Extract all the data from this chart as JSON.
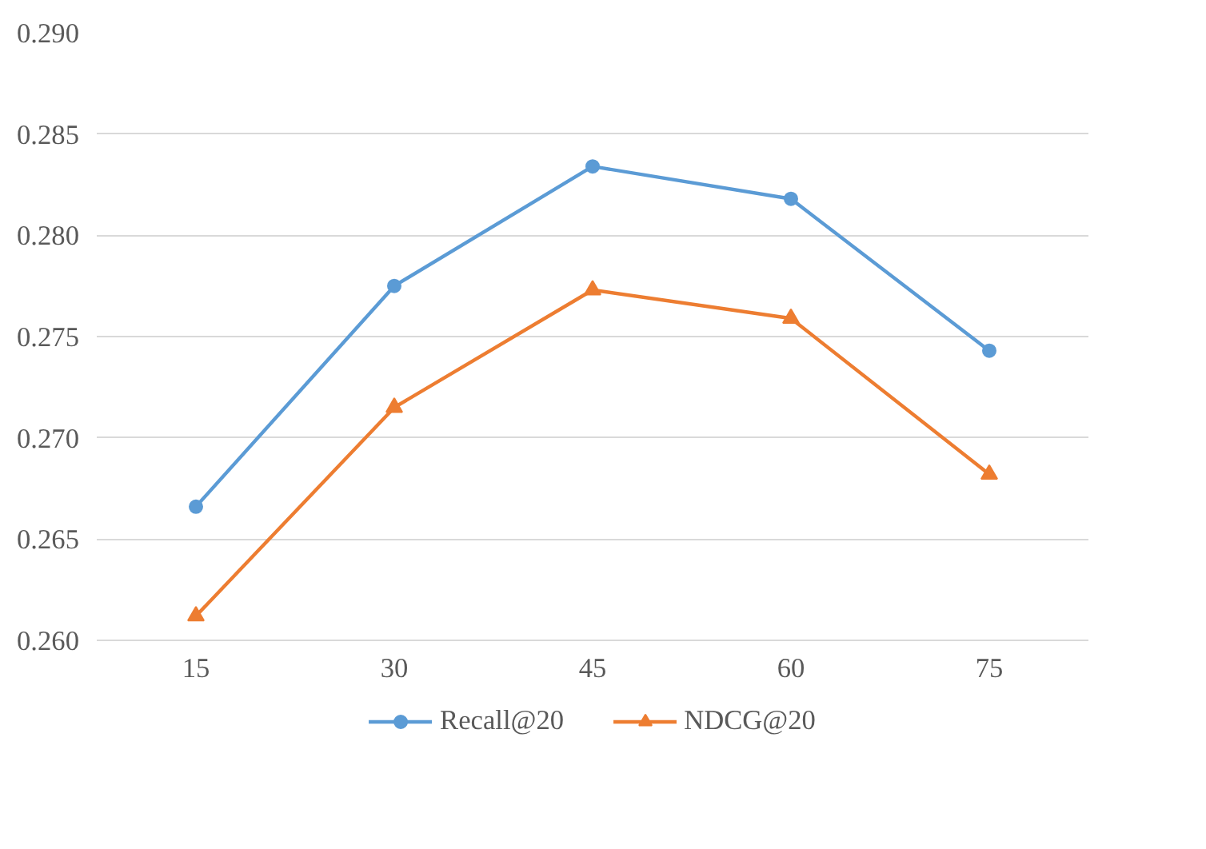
{
  "chart_data": {
    "type": "line",
    "categories": [
      "15",
      "30",
      "45",
      "60",
      "75"
    ],
    "series": [
      {
        "name": "Recall@20",
        "color": "#5b9bd5",
        "marker": "circle",
        "values": [
          0.2666,
          0.2775,
          0.2834,
          0.2818,
          0.2743
        ]
      },
      {
        "name": "NDCG@20",
        "color": "#ed7d31",
        "marker": "triangle",
        "values": [
          0.2612,
          0.2715,
          0.2773,
          0.2759,
          0.2682
        ]
      }
    ],
    "ylim": [
      0.26,
      0.29
    ],
    "yticks": [
      {
        "value": 0.26,
        "label": "0.260"
      },
      {
        "value": 0.265,
        "label": "0.265"
      },
      {
        "value": 0.27,
        "label": "0.270"
      },
      {
        "value": 0.275,
        "label": "0.275"
      },
      {
        "value": 0.28,
        "label": "0.280"
      },
      {
        "value": 0.285,
        "label": "0.285"
      },
      {
        "value": 0.29,
        "label": "0.290"
      }
    ],
    "grid": "y",
    "legend": "bottom",
    "line_style": "solid"
  }
}
